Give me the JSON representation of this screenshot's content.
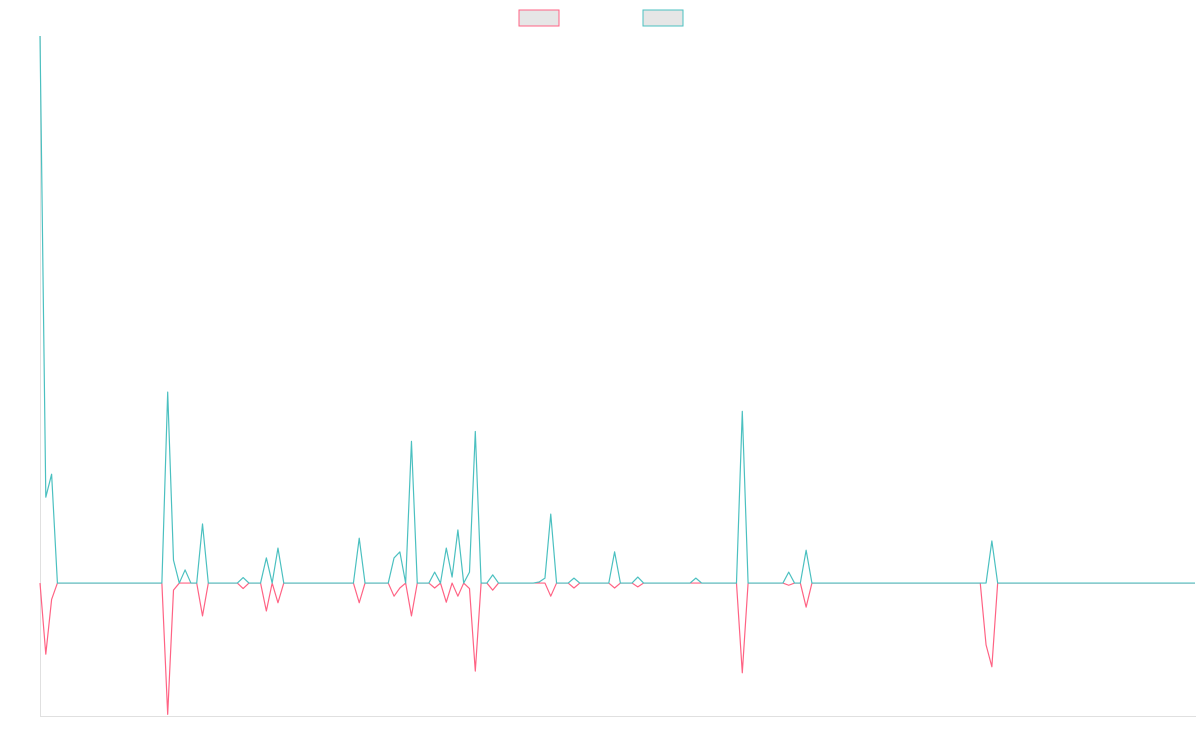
{
  "chart_data": {
    "type": "line",
    "legend": "top",
    "ylim": [
      -24.3,
      100
    ],
    "series": [
      {
        "color": "#ff6384",
        "values": [
          0,
          -13,
          -3,
          0,
          0,
          0,
          0,
          0,
          0,
          0,
          0,
          0,
          0,
          0,
          0,
          0,
          0,
          0,
          0,
          0,
          0,
          0,
          -24,
          -1.3,
          0,
          0,
          0,
          0,
          -6,
          0,
          0,
          0,
          0,
          0,
          0,
          -1,
          0,
          0,
          0,
          -5.1,
          0,
          -3.6,
          0,
          0,
          0,
          0,
          0,
          0,
          0,
          0,
          0,
          0,
          0,
          0,
          0,
          -3.6,
          0,
          0,
          0,
          0,
          0,
          -2.4,
          -0.9,
          0,
          -6,
          0,
          0,
          0,
          -0.9,
          0,
          -3.5,
          0,
          -2.4,
          0,
          -1,
          -16.1,
          0,
          0,
          -1.3,
          0,
          0,
          0,
          0,
          0,
          0,
          0,
          0,
          0,
          -2.4,
          0,
          0,
          0,
          -0.9,
          0,
          0,
          0,
          0,
          0,
          0,
          -0.9,
          0,
          0,
          0,
          -0.7,
          0,
          0,
          0,
          0,
          0,
          0,
          0,
          0,
          0,
          0,
          0,
          0,
          0,
          0,
          0,
          0,
          0,
          -16.4,
          0,
          0,
          0,
          0,
          0,
          0,
          0,
          -0.4,
          0,
          0,
          -4.4,
          0,
          0,
          0,
          0,
          0,
          0,
          0,
          0,
          0,
          0,
          0,
          0,
          0,
          0,
          0,
          0,
          0,
          0,
          0,
          0,
          0,
          0,
          0,
          0,
          0,
          0,
          0,
          0,
          0,
          0,
          -11.3,
          -15.3,
          0,
          0,
          0,
          0,
          0,
          0,
          0,
          0,
          0,
          0,
          0,
          0,
          0,
          0,
          0,
          0,
          0,
          0,
          0,
          0,
          0,
          0,
          0,
          0,
          0,
          0,
          0,
          0,
          0,
          0,
          0,
          0,
          0,
          0,
          0
        ]
      },
      {
        "color": "#4bc0c0",
        "values": [
          100,
          15.7,
          19.9,
          0,
          0,
          0,
          0,
          0,
          0,
          0,
          0,
          0,
          0,
          0,
          0,
          0,
          0,
          0,
          0,
          0,
          0,
          0,
          34.9,
          4.2,
          0,
          2.4,
          0,
          0,
          10.8,
          0,
          0,
          0,
          0,
          0,
          0,
          1,
          0,
          0,
          0,
          4.6,
          0,
          6.4,
          0,
          0,
          0,
          0,
          0,
          0,
          0,
          0,
          0,
          0,
          0,
          0,
          0,
          8.2,
          0,
          0,
          0,
          0,
          0,
          4.6,
          5.7,
          0,
          25.9,
          0,
          0,
          0,
          2,
          0,
          6.4,
          1.1,
          9.7,
          0,
          2,
          27.7,
          0,
          0,
          1.5,
          0,
          0,
          0,
          0,
          0,
          0,
          0,
          0.2,
          0.9,
          12.6,
          0,
          0,
          0,
          0.9,
          0,
          0,
          0,
          0,
          0,
          0,
          5.7,
          0,
          0,
          0,
          1.1,
          0,
          0,
          0,
          0,
          0,
          0,
          0,
          0,
          0,
          0.9,
          0,
          0,
          0,
          0,
          0,
          0,
          0,
          31.4,
          0,
          0,
          0,
          0,
          0,
          0,
          0,
          2,
          0,
          0,
          6,
          0,
          0,
          0,
          0,
          0,
          0,
          0,
          0,
          0,
          0,
          0,
          0,
          0,
          0,
          0,
          0,
          0,
          0,
          0,
          0,
          0,
          0,
          0,
          0,
          0,
          0,
          0,
          0,
          0,
          0,
          0,
          7.7,
          0,
          0,
          0,
          0,
          0,
          0,
          0,
          0,
          0,
          0,
          0,
          0,
          0,
          0,
          0,
          0,
          0,
          0,
          0,
          0,
          0,
          0,
          0,
          0,
          0,
          0,
          0,
          0,
          0,
          0,
          0,
          0,
          0,
          0,
          0
        ]
      }
    ]
  }
}
